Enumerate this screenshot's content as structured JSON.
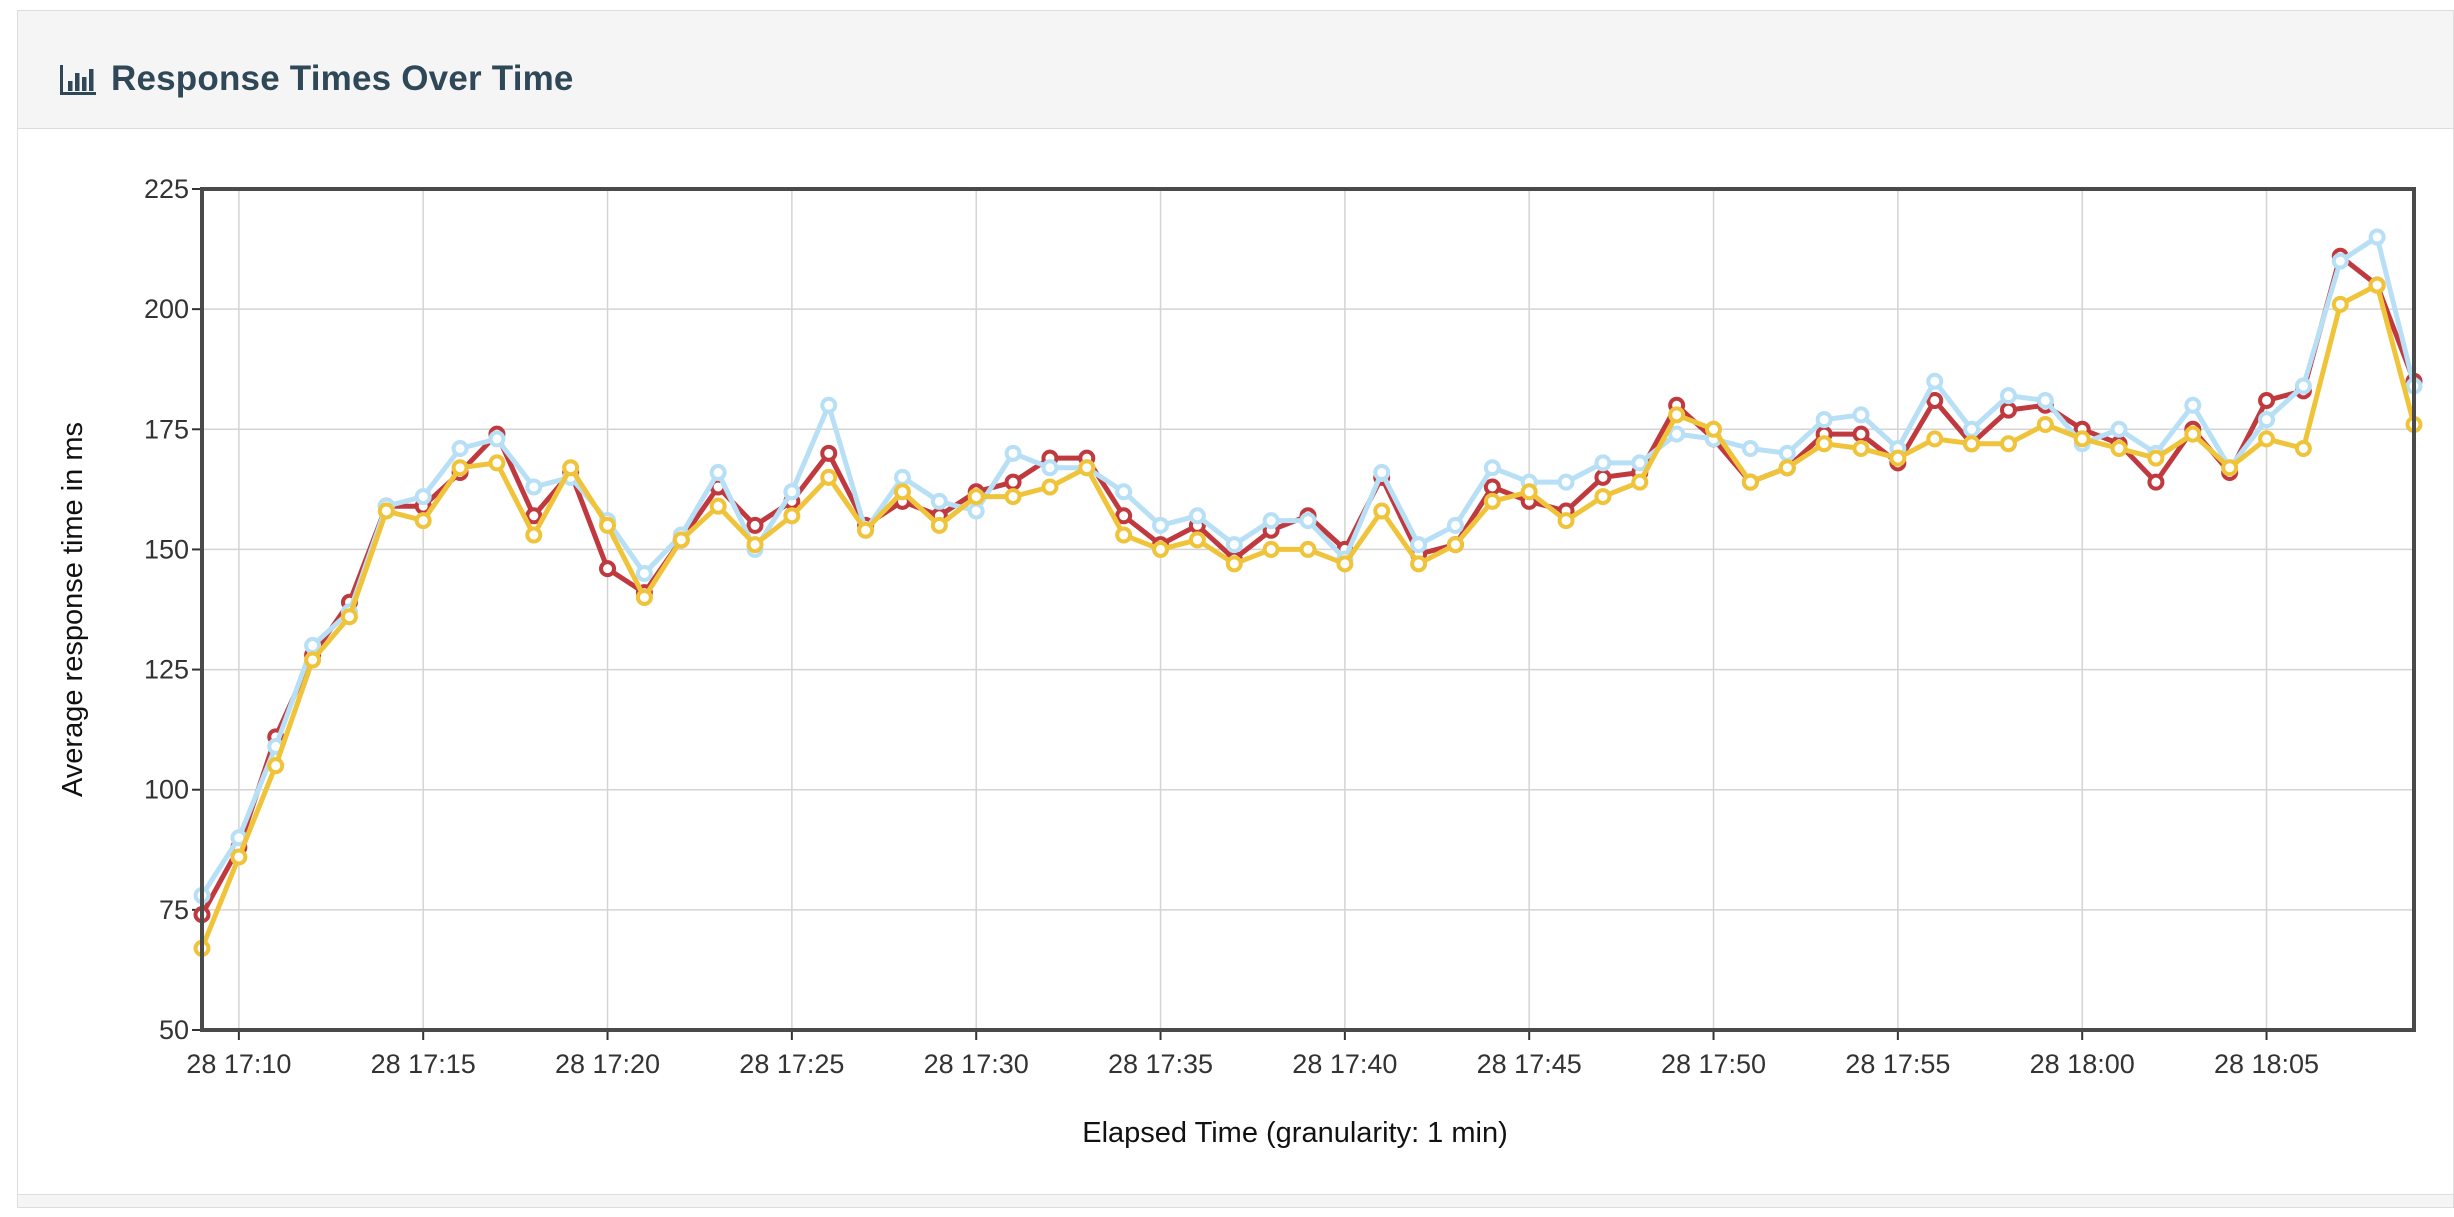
{
  "panel": {
    "title": "Response Times Over Time",
    "icon": "bar-chart-icon"
  },
  "chart_data": {
    "type": "line",
    "title": "Response Times Over Time",
    "xlabel": "Elapsed Time (granularity: 1 min)",
    "ylabel": "Average response time in ms",
    "ylim": [
      50,
      225
    ],
    "yticks": [
      50,
      75,
      100,
      125,
      150,
      175,
      200,
      225
    ],
    "x_tick_labels": [
      "28 17:10",
      "28 17:15",
      "28 17:20",
      "28 17:25",
      "28 17:30",
      "28 17:35",
      "28 17:40",
      "28 17:45",
      "28 17:50",
      "28 17:55",
      "28 18:00",
      "28 18:05"
    ],
    "x_start": "17:09",
    "x_interval_minutes": 1,
    "grid": true,
    "legend": "none",
    "series": [
      {
        "color": "#c0393f",
        "values": [
          74,
          88,
          111,
          128,
          139,
          159,
          159,
          166,
          174,
          157,
          166,
          146,
          141,
          152,
          163,
          155,
          160,
          170,
          155,
          160,
          157,
          162,
          164,
          169,
          169,
          157,
          151,
          155,
          148,
          154,
          157,
          150,
          165,
          149,
          151,
          163,
          160,
          158,
          165,
          166,
          180,
          173,
          164,
          167,
          174,
          174,
          168,
          181,
          172,
          179,
          180,
          175,
          172,
          164,
          175,
          166,
          181,
          183,
          211,
          205,
          185
        ],
        "marker_fill": "#ffffff"
      },
      {
        "color": "#b7dff5",
        "values": [
          78,
          90,
          109,
          130,
          137,
          159,
          161,
          171,
          173,
          163,
          165,
          156,
          145,
          153,
          166,
          150,
          162,
          180,
          154,
          165,
          160,
          158,
          170,
          167,
          167,
          162,
          155,
          157,
          151,
          156,
          156,
          148,
          166,
          151,
          155,
          167,
          164,
          164,
          168,
          168,
          174,
          173,
          171,
          170,
          177,
          178,
          171,
          185,
          175,
          182,
          181,
          172,
          175,
          170,
          180,
          167,
          177,
          184,
          210,
          215,
          184
        ],
        "marker_fill": "#ffffff"
      },
      {
        "color": "#f0c43a",
        "values": [
          67,
          86,
          105,
          127,
          136,
          158,
          156,
          167,
          168,
          153,
          167,
          155,
          140,
          152,
          159,
          151,
          157,
          165,
          154,
          162,
          155,
          161,
          161,
          163,
          167,
          153,
          150,
          152,
          147,
          150,
          150,
          147,
          158,
          147,
          151,
          160,
          162,
          156,
          161,
          164,
          178,
          175,
          164,
          167,
          172,
          171,
          169,
          173,
          172,
          172,
          176,
          173,
          171,
          169,
          174,
          167,
          173,
          171,
          201,
          205,
          176
        ],
        "marker_fill": "#ffffff"
      }
    ]
  }
}
